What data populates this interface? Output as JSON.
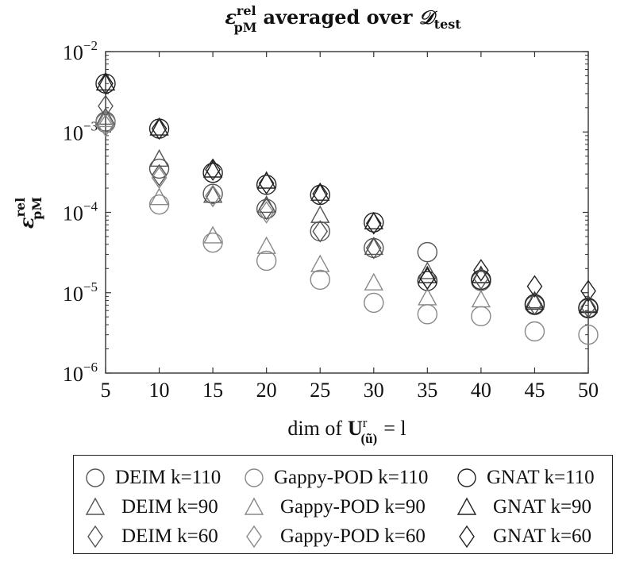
{
  "chart_data": {
    "type": "scatter",
    "title": "ε_pM^rel averaged over 𝒟_test",
    "title_main": "ε",
    "title_sup": "rel",
    "title_sub": "pM",
    "title_rest": "averaged over",
    "title_set": "𝒟",
    "title_set_sub": "test",
    "xlabel": "dim of U^r_(ũ) = l",
    "xlabel_pre": "dim of",
    "xlabel_U": "U",
    "xlabel_sup": "r",
    "xlabel_sub": "(ũ)",
    "xlabel_post": "= l",
    "ylabel": "ε_pM^rel",
    "ylabel_main": "ε",
    "ylabel_sup": "rel",
    "ylabel_sub": "pM",
    "xlim": [
      5,
      50
    ],
    "ylim": [
      1e-06,
      0.01
    ],
    "yscale": "log",
    "x": [
      5,
      10,
      15,
      20,
      25,
      30,
      35,
      40,
      45,
      50
    ],
    "x_ticks": [
      "5",
      "10",
      "15",
      "20",
      "25",
      "30",
      "35",
      "40",
      "45",
      "50"
    ],
    "y_ticks": [
      {
        "base": "10",
        "exp": "−6",
        "value": 1e-06
      },
      {
        "base": "10",
        "exp": "−5",
        "value": 1e-05
      },
      {
        "base": "10",
        "exp": "−4",
        "value": 0.0001
      },
      {
        "base": "10",
        "exp": "−3",
        "value": 0.001
      },
      {
        "base": "10",
        "exp": "−2",
        "value": 0.01
      }
    ],
    "series": [
      {
        "name": "DEIM k=110",
        "marker": "circle",
        "color": "#555555",
        "values": [
          0.00135,
          0.00035,
          0.00017,
          0.00011,
          5.8e-05,
          3.6e-05,
          3.2e-05,
          1.4e-05,
          7e-06,
          6.5e-06
        ]
      },
      {
        "name": "Gappy-POD k=110",
        "marker": "circle",
        "color": "#888888",
        "values": [
          0.0013,
          0.000125,
          4.2e-05,
          2.5e-05,
          1.45e-05,
          7.5e-06,
          5.4e-06,
          5.1e-06,
          3.3e-06,
          3e-06
        ]
      },
      {
        "name": "GNAT k=110",
        "marker": "circle",
        "color": "#222222",
        "values": [
          0.004,
          0.0011,
          0.00031,
          0.00022,
          0.000165,
          7.5e-05,
          1.4e-05,
          1.45e-05,
          7.2e-06,
          6.4e-06
        ]
      },
      {
        "name": "DEIM k=90",
        "marker": "triangle",
        "color": "#555555",
        "values": [
          0.0015,
          0.00045,
          0.00016,
          0.00012,
          9e-05,
          3.6e-05,
          1.8e-05,
          1.6e-05,
          7.8e-06,
          7e-06
        ]
      },
      {
        "name": "Gappy-POD k=90",
        "marker": "triangle",
        "color": "#888888",
        "values": [
          0.0014,
          0.00015,
          5e-05,
          3.7e-05,
          2.2e-05,
          1.3e-05,
          8.5e-06,
          8e-06,
          null,
          null
        ]
      },
      {
        "name": "GNAT k=90",
        "marker": "triangle",
        "color": "#222222",
        "values": [
          0.004,
          0.0011,
          0.00033,
          0.00024,
          0.00017,
          7.5e-05,
          1.6e-05,
          1.6e-05,
          7.5e-06,
          6.8e-06
        ]
      },
      {
        "name": "DEIM k=60",
        "marker": "diamond",
        "color": "#555555",
        "values": [
          0.0021,
          0.00029,
          0.00016,
          0.00011,
          5.8e-05,
          3.6e-05,
          1.5e-05,
          1.5e-05,
          7.2e-06,
          6.6e-06
        ]
      },
      {
        "name": "Gappy-POD k=60",
        "marker": "diamond",
        "color": "#888888",
        "values": [
          0.0012,
          0.00027,
          0.00016,
          0.0001,
          null,
          null,
          null,
          null,
          null,
          null
        ]
      },
      {
        "name": "GNAT k=60",
        "marker": "diamond",
        "color": "#222222",
        "values": [
          0.004,
          0.0011,
          0.00034,
          0.00023,
          0.00017,
          7.3e-05,
          1.5e-05,
          1.9e-05,
          1.2e-05,
          1.05e-05
        ]
      }
    ],
    "grid": false,
    "legend_position": "bottom"
  }
}
